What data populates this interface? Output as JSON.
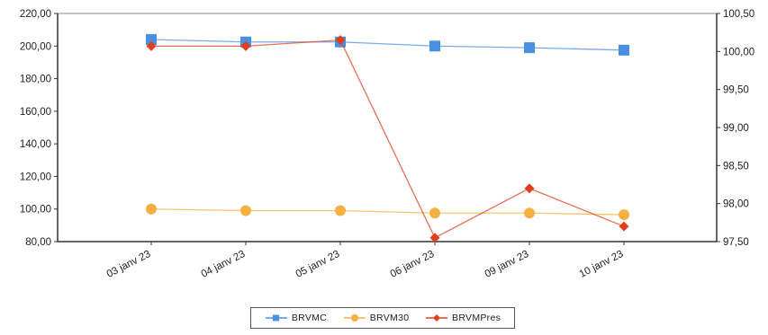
{
  "chart_data": {
    "type": "line",
    "categories": [
      "03 janv 23",
      "04 janv 23",
      "05 janv 23",
      "06 janv 23",
      "09 janv 23",
      "10 janv 23"
    ],
    "y_left": {
      "range": [
        80,
        220
      ],
      "ticks": [
        "80,00",
        "100,00",
        "120,00",
        "140,00",
        "160,00",
        "180,00",
        "200,00",
        "220,00"
      ]
    },
    "y_right": {
      "range": [
        97.5,
        100.5
      ],
      "ticks": [
        "97,50",
        "98,00",
        "98,50",
        "99,00",
        "99,50",
        "100,00",
        "100,50"
      ]
    },
    "series": [
      {
        "name": "BRVMC",
        "axis": "left",
        "color": "#4a90e2",
        "marker": "square",
        "values": [
          204,
          202.5,
          202.5,
          200,
          199,
          197.5
        ]
      },
      {
        "name": "BRVM30",
        "axis": "left",
        "color": "#f5b041",
        "marker": "circle",
        "values": [
          100,
          99,
          99,
          97.5,
          97.5,
          96.5
        ]
      },
      {
        "name": "BRVMPres",
        "axis": "right",
        "color": "#e0401c",
        "marker": "diamond",
        "values": [
          100.07,
          100.07,
          100.15,
          97.55,
          98.2,
          97.7
        ]
      }
    ],
    "grid": false,
    "legend_position": "bottom"
  }
}
